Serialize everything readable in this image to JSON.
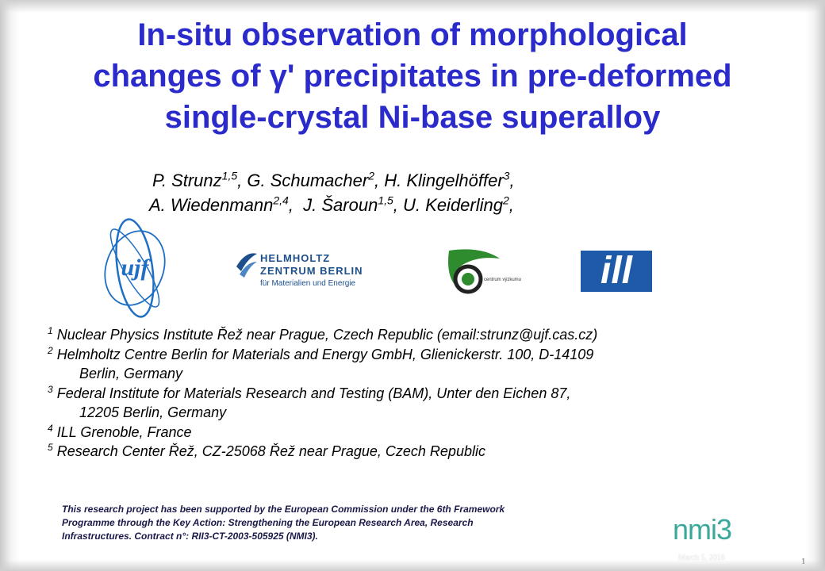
{
  "title": {
    "line1": "In-situ observation of morphological",
    "line2": "changes of γ' precipitates in pre-deformed",
    "line3": "single-crystal Ni-base superalloy"
  },
  "authors": {
    "line1": [
      {
        "name": "P. Strunz",
        "sup": "1,5",
        "sep": ", "
      },
      {
        "name": "G. Schumacher",
        "sup": "2",
        "sep": ", "
      },
      {
        "name": "H. Klingelhöffer",
        "sup": "3",
        "sep": ","
      }
    ],
    "line2": [
      {
        "name": "A. Wiedenmann",
        "sup": "2,4",
        "sep": ",  "
      },
      {
        "name": "J. Šaroun",
        "sup": "1,5",
        "sep": ", "
      },
      {
        "name": "U. Keiderling",
        "sup": "2",
        "sep": ","
      }
    ]
  },
  "logos": {
    "ujf": {
      "text": "ujf",
      "icon": "ujf-logo",
      "color": "#1f6fc4"
    },
    "hzb": {
      "line1": "HELMHOLTZ",
      "line2": "ZENTRUM BERLIN",
      "line3": "für Materialien und Energie",
      "icon": "hzb-logo",
      "color": "#1c4f8c"
    },
    "cvr": {
      "text": "centrum výzkumu Řež s.r.o.",
      "icon": "cvr-logo",
      "color": "#2e8b2e"
    },
    "ill": {
      "text": "ill",
      "icon": "ill-logo",
      "color": "#1e5aa8"
    },
    "nmi3": {
      "text": "nmi3",
      "icon": "nmi3-logo",
      "color": "#3aa89a"
    }
  },
  "affiliations": [
    {
      "sup": "1",
      "lines": [
        "Nuclear Physics Institute Řež near Prague, Czech Republic (email:strunz@ujf.cas.cz)"
      ]
    },
    {
      "sup": "2",
      "lines": [
        "Helmholtz Centre Berlin for Materials and Energy GmbH, Glienickerstr. 100, D-14109",
        "Berlin, Germany"
      ]
    },
    {
      "sup": "3",
      "lines": [
        "Federal Institute for Materials Research and Testing (BAM), Unter den Eichen 87,",
        "12205 Berlin, Germany"
      ]
    },
    {
      "sup": "4",
      "lines": [
        "ILL Grenoble, France"
      ]
    },
    {
      "sup": "5",
      "lines": [
        "Research Center Řež, CZ-25068 Řež near Prague, Czech Republic"
      ]
    }
  ],
  "funding": {
    "line1": "This research project has been supported by the European Commission under the 6th Framework",
    "line2": "Programme through the Key Action: Strengthening the European Research Area, Research",
    "line3": "Infrastructures.  Contract n°: RII3-CT-2003-505925 (NMI3)."
  },
  "footer": {
    "date": "March 5, 2016",
    "page": "1"
  }
}
